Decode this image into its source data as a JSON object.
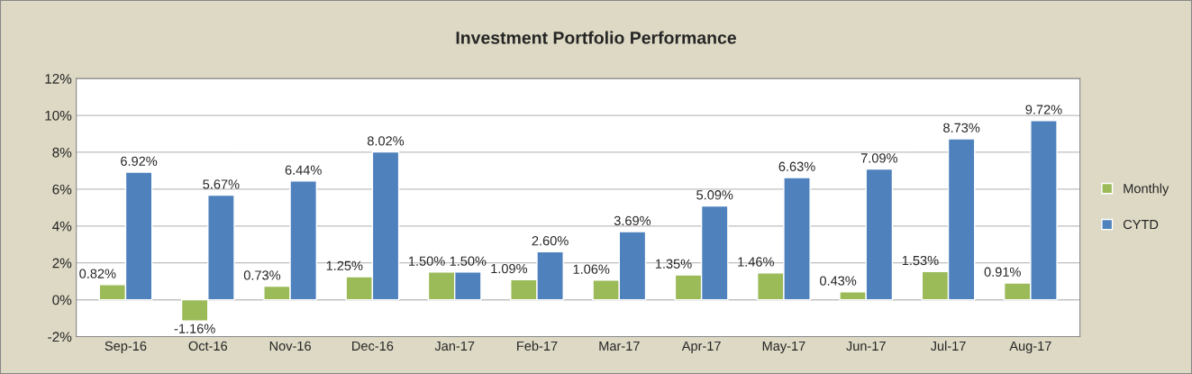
{
  "chart_data": {
    "type": "bar",
    "title": "Investment Portfolio Performance",
    "categories": [
      "Sep-16",
      "Oct-16",
      "Nov-16",
      "Dec-16",
      "Jan-17",
      "Feb-17",
      "Mar-17",
      "Apr-17",
      "May-17",
      "Jun-17",
      "Jul-17",
      "Aug-17"
    ],
    "series": [
      {
        "name": "Monthly",
        "color": "#9bbb59",
        "values": [
          0.82,
          -1.16,
          0.73,
          1.25,
          1.5,
          1.09,
          1.06,
          1.35,
          1.46,
          0.43,
          1.53,
          0.91
        ],
        "value_labels": [
          "0.82%",
          "-1.16%",
          "0.73%",
          "1.25%",
          "1.50%",
          "1.09%",
          "1.06%",
          "1.35%",
          "1.46%",
          "0.43%",
          "1.53%",
          "0.91%"
        ]
      },
      {
        "name": "CYTD",
        "color": "#4f81bd",
        "values": [
          6.92,
          5.67,
          6.44,
          8.02,
          1.5,
          2.6,
          3.69,
          5.09,
          6.63,
          7.09,
          8.73,
          9.72
        ],
        "value_labels": [
          "6.92%",
          "5.67%",
          "6.44%",
          "8.02%",
          "1.50%",
          "2.60%",
          "3.69%",
          "5.09%",
          "6.63%",
          "7.09%",
          "8.73%",
          "9.72%"
        ]
      }
    ],
    "ylim": [
      -2,
      12
    ],
    "yticks": [
      {
        "value": -2,
        "label": "-2%"
      },
      {
        "value": 0,
        "label": "0%"
      },
      {
        "value": 2,
        "label": "2%"
      },
      {
        "value": 4,
        "label": "4%"
      },
      {
        "value": 6,
        "label": "6%"
      },
      {
        "value": 8,
        "label": "8%"
      },
      {
        "value": 10,
        "label": "10%"
      },
      {
        "value": 12,
        "label": "12%"
      }
    ],
    "grid": "y",
    "legend": "right"
  }
}
